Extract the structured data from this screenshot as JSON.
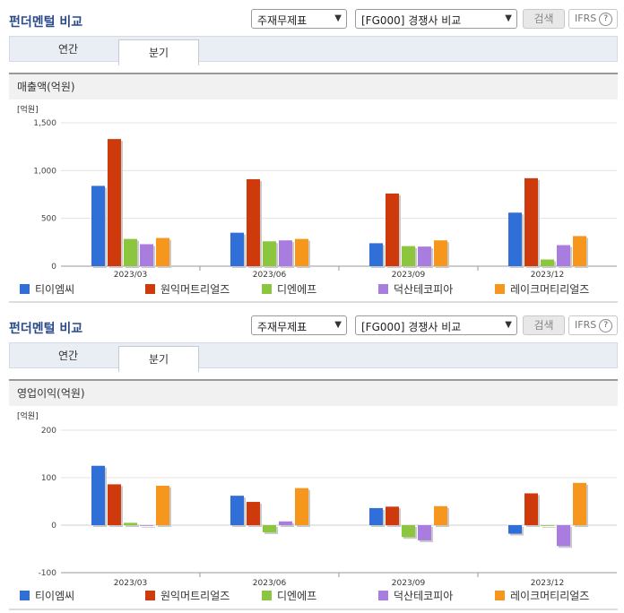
{
  "panels": [
    {
      "title": "펀더멘털 비교",
      "select1": "주재무제표",
      "select2": "[FG000] 경쟁사 비교",
      "search_label": "검색",
      "ifrs_label": "IFRS",
      "ifrs_help": "?",
      "tabs": [
        "연간",
        "분기"
      ],
      "active_tab": 1,
      "section_title": "매출액(억원)",
      "chart_data": {
        "type": "bar",
        "unit_label": "[억원]",
        "categories": [
          "2023/03",
          "2023/06",
          "2023/09",
          "2023/12"
        ],
        "ylim": [
          0,
          1500
        ],
        "yticks": [
          0,
          500,
          1000,
          1500
        ],
        "ytick_labels": [
          "0",
          "500",
          "1,000",
          "1,500"
        ],
        "series": [
          {
            "name": "티이엠씨",
            "color": "#2f6fd7",
            "values": [
              840,
              350,
              240,
              560
            ]
          },
          {
            "name": "원익머트리얼즈",
            "color": "#cf3a0c",
            "values": [
              1330,
              910,
              760,
              920
            ]
          },
          {
            "name": "디엔에프",
            "color": "#8cc63f",
            "values": [
              285,
              260,
              210,
              70
            ]
          },
          {
            "name": "덕산테코피아",
            "color": "#a97de0",
            "values": [
              230,
              270,
              205,
              220
            ]
          },
          {
            "name": "레이크머티리얼즈",
            "color": "#f7961c",
            "values": [
              295,
              285,
              270,
              315
            ]
          }
        ]
      }
    },
    {
      "title": "펀더멘털 비교",
      "select1": "주재무제표",
      "select2": "[FG000] 경쟁사 비교",
      "search_label": "검색",
      "ifrs_label": "IFRS",
      "ifrs_help": "?",
      "tabs": [
        "연간",
        "분기"
      ],
      "active_tab": 1,
      "section_title": "영업이익(억원)",
      "chart_data": {
        "type": "bar",
        "unit_label": "[억원]",
        "categories": [
          "2023/03",
          "2023/06",
          "2023/09",
          "2023/12"
        ],
        "ylim": [
          -100,
          200
        ],
        "yticks": [
          -100,
          0,
          100,
          200
        ],
        "ytick_labels": [
          "-100",
          "0",
          "100",
          "200"
        ],
        "series": [
          {
            "name": "티이엠씨",
            "color": "#2f6fd7",
            "values": [
              125,
              62,
              36,
              -18
            ]
          },
          {
            "name": "원익머트리얼즈",
            "color": "#cf3a0c",
            "values": [
              86,
              49,
              39,
              67
            ]
          },
          {
            "name": "디엔에프",
            "color": "#8cc63f",
            "values": [
              5,
              -15,
              -25,
              0
            ]
          },
          {
            "name": "덕산테코피아",
            "color": "#a97de0",
            "values": [
              0,
              8,
              -32,
              -44
            ]
          },
          {
            "name": "레이크머티리얼즈",
            "color": "#f7961c",
            "values": [
              83,
              78,
              40,
              89
            ]
          }
        ]
      }
    }
  ]
}
